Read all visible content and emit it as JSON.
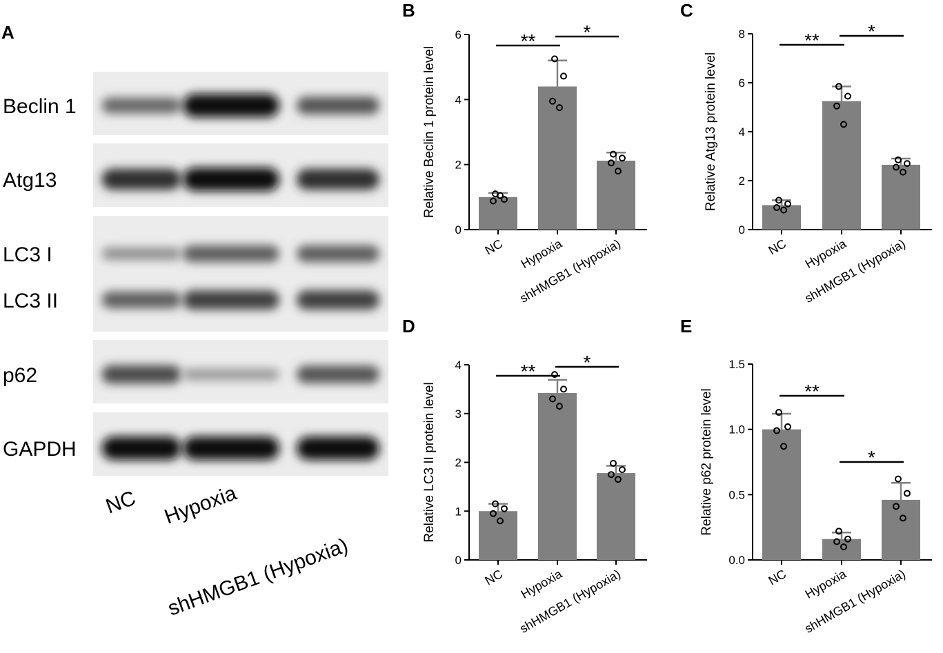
{
  "blot_panel": {
    "letter": "A",
    "rows": [
      {
        "label": "Beclin 1",
        "intensity": [
          0.55,
          1.0,
          0.65
        ]
      },
      {
        "label": "Atg13",
        "intensity": [
          0.85,
          1.0,
          0.85
        ]
      },
      {
        "label": "LC3 I",
        "intensity": [
          0.35,
          0.6,
          0.6
        ]
      },
      {
        "label": "LC3 II",
        "intensity": [
          0.6,
          0.75,
          0.75
        ]
      },
      {
        "label": "p62",
        "intensity": [
          0.7,
          0.3,
          0.65
        ]
      },
      {
        "label": "GAPDH",
        "intensity": [
          1.0,
          1.0,
          1.0
        ]
      }
    ],
    "lanes": [
      "NC",
      "Hypoxia",
      "shHMGB1 (Hypoxia)"
    ]
  },
  "chart_data": [
    {
      "type": "bar",
      "letter": "B",
      "categories": [
        "NC",
        "Hypoxia",
        "shHMGB1 (Hypoxia)"
      ],
      "values": [
        1.0,
        4.4,
        2.12
      ],
      "errors": [
        0.13,
        0.8,
        0.25
      ],
      "points": [
        [
          1.1,
          0.93,
          0.88,
          1.05
        ],
        [
          5.25,
          4.72,
          3.95,
          3.75
        ],
        [
          2.32,
          2.2,
          2.05,
          1.8
        ]
      ],
      "ylabel": "Relative Beclin 1 protein level",
      "ylim": [
        0,
        6
      ],
      "yticks": [
        0,
        2,
        4,
        6
      ],
      "significance": [
        {
          "from": 0,
          "to": 1,
          "label": "**"
        },
        {
          "from": 1,
          "to": 2,
          "label": "*"
        }
      ]
    },
    {
      "type": "bar",
      "letter": "C",
      "categories": [
        "NC",
        "Hypoxia",
        "shHMGB1 (Hypoxia)"
      ],
      "values": [
        1.0,
        5.25,
        2.65
      ],
      "errors": [
        0.2,
        0.6,
        0.25
      ],
      "points": [
        [
          1.2,
          1.05,
          0.9,
          0.8
        ],
        [
          5.85,
          5.45,
          5.05,
          4.3
        ],
        [
          2.85,
          2.7,
          2.55,
          2.35
        ]
      ],
      "ylabel": "Relative Atg13 protein level",
      "ylim": [
        0,
        8
      ],
      "yticks": [
        0,
        2,
        4,
        6,
        8
      ],
      "significance": [
        {
          "from": 0,
          "to": 1,
          "label": "**"
        },
        {
          "from": 1,
          "to": 2,
          "label": "*"
        }
      ]
    },
    {
      "type": "bar",
      "letter": "D",
      "categories": [
        "NC",
        "Hypoxia",
        "shHMGB1 (Hypoxia)"
      ],
      "values": [
        1.0,
        3.42,
        1.78
      ],
      "errors": [
        0.15,
        0.27,
        0.15
      ],
      "points": [
        [
          1.15,
          1.05,
          0.95,
          0.8
        ],
        [
          3.8,
          3.5,
          3.3,
          3.15
        ],
        [
          1.98,
          1.85,
          1.75,
          1.65
        ]
      ],
      "ylabel": "Relative LC3 II protein level",
      "ylim": [
        0,
        4
      ],
      "yticks": [
        0,
        1,
        2,
        3,
        4
      ],
      "significance": [
        {
          "from": 0,
          "to": 1,
          "label": "**"
        },
        {
          "from": 1,
          "to": 2,
          "label": "*"
        }
      ]
    },
    {
      "type": "bar",
      "letter": "E",
      "categories": [
        "NC",
        "Hypoxia",
        "shHMGB1 (Hypoxia)"
      ],
      "values": [
        1.0,
        0.16,
        0.46
      ],
      "errors": [
        0.12,
        0.05,
        0.13
      ],
      "points": [
        [
          1.13,
          1.02,
          0.99,
          0.87
        ],
        [
          0.22,
          0.16,
          0.14,
          0.1
        ],
        [
          0.62,
          0.51,
          0.41,
          0.32
        ]
      ],
      "ylabel": "Relative p62 protein level",
      "ylim": [
        0,
        1.5
      ],
      "yticks": [
        "0.0",
        "0.5",
        "1.0",
        "1.5"
      ],
      "significance": [
        {
          "from": 0,
          "to": 1,
          "label": "**"
        },
        {
          "from": 1,
          "to": 2,
          "label": "*"
        }
      ]
    }
  ]
}
